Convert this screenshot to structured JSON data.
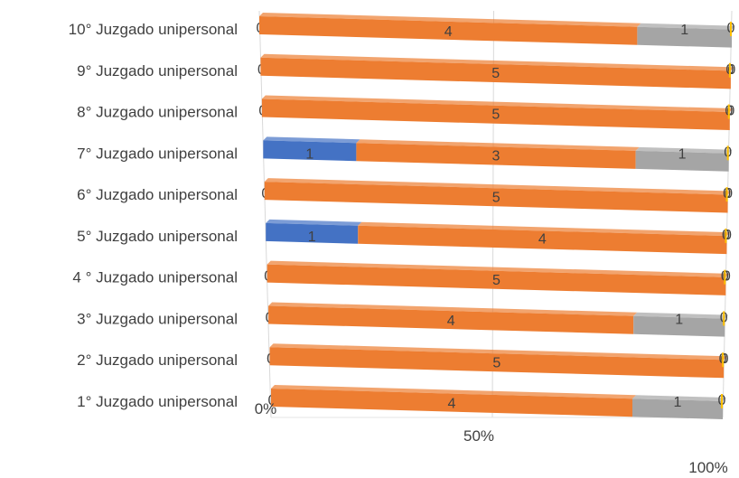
{
  "chart_data": {
    "type": "bar",
    "orientation": "horizontal",
    "stacked": "100%",
    "perspective": "3d",
    "categories": [
      "10° Juzgado unipersonal",
      "9° Juzgado unipersonal",
      "8° Juzgado unipersonal",
      "7° Juzgado unipersonal",
      "6° Juzgado unipersonal",
      "5° Juzgado unipersonal",
      "4 ° Juzgado unipersonal",
      "3° Juzgado unipersonal",
      "2° Juzgado unipersonal",
      "1° Juzgado unipersonal"
    ],
    "bars": [
      {
        "category": "10° Juzgado unipersonal",
        "values": [
          0,
          4,
          1,
          0
        ]
      },
      {
        "category": "9° Juzgado unipersonal",
        "values": [
          0,
          5,
          0,
          0
        ]
      },
      {
        "category": "8° Juzgado unipersonal",
        "values": [
          0,
          5,
          0,
          0
        ]
      },
      {
        "category": "7° Juzgado unipersonal",
        "values": [
          1,
          3,
          1,
          0
        ]
      },
      {
        "category": "6° Juzgado unipersonal",
        "values": [
          0,
          5,
          0,
          0
        ]
      },
      {
        "category": "5° Juzgado unipersonal",
        "values": [
          1,
          4,
          0,
          0
        ]
      },
      {
        "category": "4 ° Juzgado unipersonal",
        "values": [
          0,
          5,
          0,
          0
        ]
      },
      {
        "category": "3° Juzgado unipersonal",
        "values": [
          0,
          4,
          1,
          0
        ]
      },
      {
        "category": "2° Juzgado unipersonal",
        "values": [
          0,
          5,
          0,
          0
        ]
      },
      {
        "category": "1° Juzgado unipersonal",
        "values": [
          0,
          4,
          1,
          0
        ]
      }
    ],
    "series_colors": [
      "#4472c4",
      "#ed7d31",
      "#a5a5a5",
      "#ffc000"
    ],
    "x_ticks": [
      "0%",
      "50%",
      "100%"
    ],
    "xlim": [
      0,
      100
    ],
    "grid": true,
    "legend": "none"
  }
}
